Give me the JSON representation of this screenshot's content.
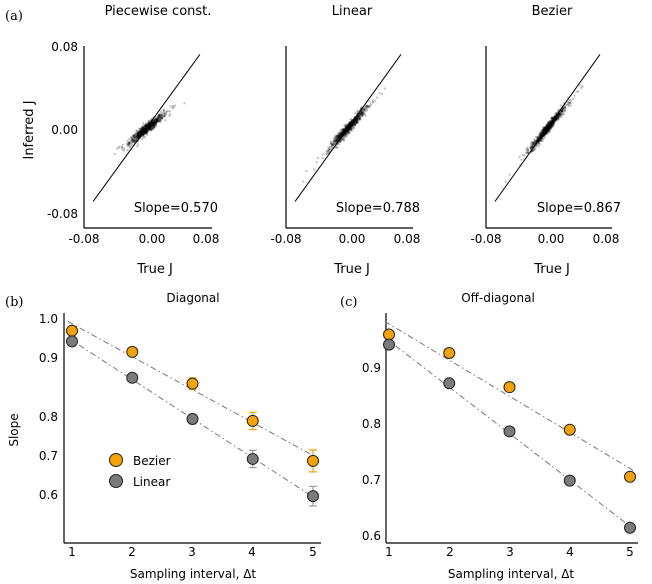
{
  "panel_labels": {
    "a": "(a)",
    "b": "(b)",
    "c": "(c)"
  },
  "chart_data": [
    {
      "type": "scatter",
      "title": "Piecewise const.",
      "xlabel": "True  J",
      "ylabel": "Inferred  J",
      "xlim": [
        -0.08,
        0.08
      ],
      "ylim": [
        -0.08,
        0.08
      ],
      "x_ticks": [
        "-0.08",
        "0.00",
        "0.08"
      ],
      "y_ticks": [
        "0.08",
        "0.00",
        "-0.08"
      ],
      "annotation": "Slope=0.570",
      "slope": 0.57,
      "reference_line": "y = x",
      "grid": false
    },
    {
      "type": "scatter",
      "title": "Linear",
      "xlabel": "True  J",
      "xlim": [
        -0.08,
        0.08
      ],
      "ylim": [
        -0.08,
        0.08
      ],
      "x_ticks": [
        "-0.08",
        "0.00",
        "0.08"
      ],
      "annotation": "Slope=0.788",
      "slope": 0.788,
      "reference_line": "y = x",
      "grid": false
    },
    {
      "type": "scatter",
      "title": "Bezier",
      "xlabel": "True  J",
      "xlim": [
        -0.08,
        0.08
      ],
      "ylim": [
        -0.08,
        0.08
      ],
      "x_ticks": [
        "-0.08",
        "0.00",
        "0.08"
      ],
      "annotation": "Slope=0.867",
      "slope": 0.867,
      "reference_line": "y = x",
      "grid": false
    },
    {
      "type": "scatter",
      "title": "Diagonal",
      "xlabel": "Sampling interval, Δt",
      "ylabel": "Slope",
      "xlim": [
        0.8,
        5.2
      ],
      "ylim": [
        0.5,
        1.0
      ],
      "x_ticks": [
        "1",
        "2",
        "3",
        "4",
        "5"
      ],
      "y_ticks": [
        "1.0",
        "0.9",
        "0.8",
        "0.7",
        "0.6"
      ],
      "legend_position": "bottom-left",
      "x": [
        1,
        2,
        3,
        4,
        5
      ],
      "series": [
        {
          "name": "Bezier",
          "color": "#f5a300",
          "values": [
            0.97,
            0.916,
            0.835,
            0.74,
            0.638
          ],
          "errors": [
            0.008,
            0.008,
            0.015,
            0.022,
            0.028
          ]
        },
        {
          "name": "Linear",
          "color": "#7a7a7a",
          "values": [
            0.943,
            0.85,
            0.745,
            0.643,
            0.548
          ],
          "errors": [
            0.008,
            0.008,
            0.012,
            0.022,
            0.025
          ]
        }
      ]
    },
    {
      "type": "scatter",
      "title": "Off-diagonal",
      "xlabel": "Sampling interval, Δt",
      "xlim": [
        0.8,
        5.2
      ],
      "ylim": [
        0.6,
        1.0
      ],
      "x_ticks": [
        "1",
        "2",
        "3",
        "4",
        "5"
      ],
      "y_ticks": [
        "0.9",
        "0.8",
        "0.7",
        "0.6"
      ],
      "x": [
        1,
        2,
        3,
        4,
        5
      ],
      "series": [
        {
          "name": "Bezier",
          "color": "#f5a300",
          "values": [
            0.958,
            0.925,
            0.864,
            0.788,
            0.704
          ]
        },
        {
          "name": "Linear",
          "color": "#7a7a7a",
          "values": [
            0.94,
            0.871,
            0.785,
            0.697,
            0.613
          ]
        }
      ]
    }
  ]
}
